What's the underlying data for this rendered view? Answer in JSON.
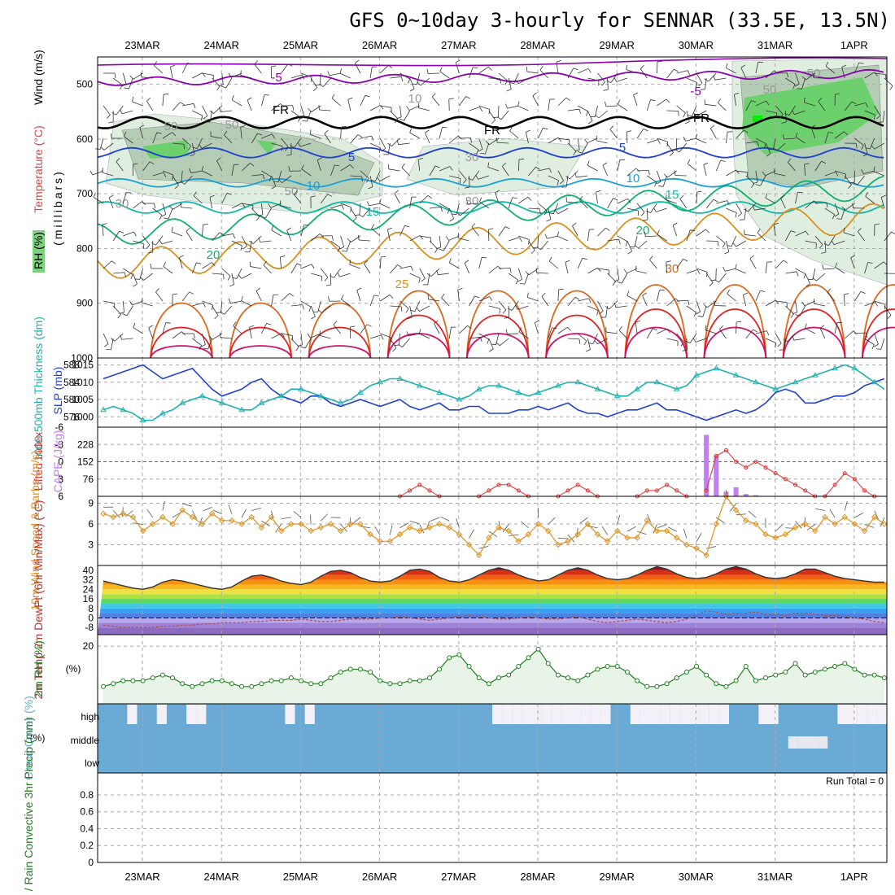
{
  "title": "GFS 0~10day 3-hourly for SENNAR (33.5E, 13.5N)",
  "dates": [
    "23MAR",
    "24MAR",
    "25MAR",
    "26MAR",
    "27MAR",
    "28MAR",
    "29MAR",
    "30MAR",
    "31MAR",
    "1APR"
  ],
  "run_total": "Run Total = 0",
  "colors": {
    "purple": "#8b00b0",
    "blue": "#1f3fd0",
    "cyan": "#19a0d8",
    "teal": "#10b8a8",
    "green": "#10b070",
    "orange": "#d89020",
    "dkorange": "#d86820",
    "red": "#e02020",
    "magenta": "#d0106a",
    "rh_fill": "#7fd07f",
    "cloud": "#6aaad4",
    "thick": "#20b0b0",
    "slp": "#2040d0",
    "cape": "#c080f0",
    "li": "#e03030",
    "wind": "#e09020",
    "rh2m": "#208020"
  },
  "chart_data": [
    {
      "type": "heatmap",
      "panel": "upper air",
      "ylabel_parts": [
        "RH (%)",
        "Temperature (°C)",
        "Wind (m/s)"
      ],
      "ylabel_unit": "(millibars)",
      "yticks": [
        "500",
        "600",
        "700",
        "800",
        "900",
        "1000"
      ],
      "ylim": [
        1000,
        450
      ],
      "contour_labels": [
        "-5",
        "-5",
        "FR",
        "FR",
        "FR",
        "5",
        "5",
        "10",
        "10",
        "15",
        "15",
        "20",
        "20",
        "25",
        "30",
        "10",
        "30",
        "50",
        "50",
        "50",
        "50",
        "50",
        "30",
        "30"
      ],
      "temperature_levels_mb": {
        "-5": 495,
        "FR": 570,
        "5": 625,
        "10": 680,
        "15": 725,
        "20": 775,
        "25": 830
      }
    },
    {
      "type": "line",
      "panel": "thickness-slp",
      "ylabel_thickness": "1000-500mb Thickness (dm)",
      "ylabel_slp": "SLP (mb)",
      "yticks_left": [
        "576",
        "580",
        "584",
        "588"
      ],
      "yticks_right": [
        "1000",
        "1005",
        "1010",
        "1015"
      ],
      "series": [
        {
          "name": "SLP (mb)",
          "values": [
            1011,
            1012,
            1013,
            1014,
            1015,
            1013,
            1011,
            1012,
            1013,
            1014,
            1011,
            1008,
            1006,
            1007,
            1008,
            1010,
            1011,
            1008,
            1006,
            1005,
            1004,
            1006,
            1006,
            1004,
            1003,
            1004,
            1005,
            1004,
            1003,
            1004,
            1005,
            1003,
            1002,
            1003,
            1004,
            1002,
            1002,
            1003,
            1003,
            1001,
            1001,
            1001,
            1002,
            1002,
            1003,
            1002,
            1003,
            1004,
            1002,
            1001,
            1001,
            1000,
            1001,
            1002,
            1002,
            1003,
            1004,
            1002,
            1002,
            1001,
            1000,
            999,
            1000,
            1001,
            1002,
            1001,
            1002,
            1004,
            1007,
            1008,
            1007,
            1004,
            1004,
            1005,
            1006,
            1006,
            1007,
            1009,
            1010,
            1011
          ]
        },
        {
          "name": "1000-500mb Thickness (dm)",
          "values": [
            1002,
            1003,
            1002,
            1001,
            999,
            999,
            1001,
            1002,
            1004,
            1005,
            1006,
            1005,
            1004,
            1003,
            1002,
            1002,
            1004,
            1005,
            1006,
            1008,
            1008,
            1007,
            1006,
            1005,
            1004,
            1005,
            1007,
            1009,
            1010,
            1011,
            1011,
            1010,
            1009,
            1008,
            1007,
            1006,
            1005,
            1006,
            1008,
            1009,
            1009,
            1008,
            1007,
            1006,
            1007,
            1008,
            1009,
            1010,
            1010,
            1009,
            1008,
            1007,
            1006,
            1006,
            1008,
            1010,
            1010,
            1009,
            1008,
            1009,
            1012,
            1013,
            1014,
            1013,
            1012,
            1011,
            1010,
            1009,
            1008,
            1009,
            1010,
            1011,
            1012,
            1013,
            1014,
            1015,
            1014,
            1012,
            1010,
            1008
          ]
        }
      ]
    },
    {
      "type": "bar",
      "panel": "lifted-cape",
      "ylabel_li": "Lifted Index",
      "ylabel_cape": "CAPE (J/kg)",
      "yticks_left": [
        "-6",
        "-3",
        "0",
        "3",
        "6"
      ],
      "yticks_right": [
        "76",
        "152",
        "228"
      ],
      "cape_values": [
        0,
        0,
        0,
        0,
        0,
        0,
        0,
        0,
        0,
        0,
        0,
        0,
        0,
        0,
        0,
        0,
        0,
        0,
        0,
        0,
        0,
        0,
        0,
        0,
        0,
        0,
        0,
        0,
        0,
        0,
        0,
        0,
        0,
        0,
        0,
        0,
        0,
        0,
        0,
        0,
        0,
        0,
        0,
        0,
        0,
        0,
        0,
        0,
        0,
        0,
        0,
        0,
        0,
        0,
        0,
        0,
        0,
        0,
        0,
        0,
        0,
        270,
        180,
        20,
        40,
        10,
        5,
        0,
        0,
        0,
        0,
        0,
        0,
        0,
        0,
        0,
        0,
        0,
        0,
        0
      ],
      "li_segments": [
        {
          "start_index": 30,
          "values": [
            6,
            5,
            4,
            5,
            6
          ]
        },
        {
          "start_index": 38,
          "values": [
            6,
            5,
            4,
            4,
            5,
            6
          ]
        },
        {
          "start_index": 46,
          "values": [
            6,
            5,
            4,
            5,
            6
          ]
        },
        {
          "start_index": 54,
          "values": [
            6,
            5,
            5,
            4,
            5,
            6
          ]
        },
        {
          "start_index": 61,
          "values": [
            5,
            -1,
            -2,
            0,
            1,
            0,
            1,
            2,
            3,
            4,
            5,
            6
          ]
        },
        {
          "start_index": 73,
          "values": [
            6,
            4,
            2,
            3,
            5,
            6
          ]
        }
      ]
    },
    {
      "type": "line",
      "panel": "10m wind",
      "ylabel": "10m Wind Speed & Barbs (m/s)",
      "yticks": [
        "3",
        "6",
        "9"
      ],
      "ylim": [
        0,
        10
      ],
      "values": [
        7.5,
        7,
        7.5,
        7,
        5,
        6,
        7,
        6,
        8,
        7,
        6,
        7.5,
        6.5,
        6.5,
        6,
        7,
        5.5,
        7,
        5,
        6,
        6,
        5,
        5.5,
        6,
        5,
        6,
        6,
        4.5,
        3.5,
        3.5,
        4.5,
        5.5,
        5,
        5.5,
        6,
        5.5,
        4.5,
        3,
        1.5,
        4,
        5.5,
        5,
        3.5,
        4.5,
        6,
        5,
        3,
        3.5,
        4.5,
        6,
        4.5,
        3.5,
        5,
        4,
        4,
        6.5,
        5,
        5,
        4,
        3,
        2.5,
        1.5,
        6,
        10,
        8,
        6.5,
        6,
        4.5,
        4,
        4.5,
        5.5,
        6,
        5,
        7,
        6,
        7,
        6,
        5,
        7,
        6
      ]
    },
    {
      "type": "area",
      "panel": "2m temp",
      "ylabel": "2m Temp 2m DewPt (6hr Min/Max) (°C)",
      "yticks": [
        "-8",
        "0",
        "8",
        "16",
        "24",
        "32",
        "40"
      ],
      "ylim": [
        -14,
        44
      ],
      "temp": [
        31,
        29,
        27,
        25,
        24,
        26,
        30,
        32,
        31,
        29,
        27,
        25,
        24,
        26,
        31,
        35,
        36,
        34,
        31,
        29,
        28,
        30,
        35,
        39,
        40,
        38,
        34,
        31,
        30,
        31,
        35,
        40,
        41,
        39,
        34,
        31,
        30,
        32,
        36,
        40,
        42,
        40,
        36,
        33,
        31,
        32,
        36,
        40,
        42,
        40,
        36,
        33,
        32,
        33,
        36,
        40,
        43,
        41,
        37,
        34,
        33,
        34,
        37,
        41,
        43,
        41,
        37,
        34,
        33,
        34,
        37,
        41,
        41,
        38,
        35,
        33,
        32,
        31,
        30,
        30
      ],
      "dewpoint": [
        -6,
        -7,
        -8,
        -8,
        -8,
        -8,
        -7,
        -7,
        -6,
        -6,
        -5,
        -5,
        -4,
        -4,
        -4,
        -3,
        -3,
        -2,
        -2,
        -2,
        -1,
        -2,
        -3,
        -3,
        -2,
        -1,
        -1,
        -1,
        0,
        0,
        1,
        0,
        -1,
        -2,
        -1,
        0,
        1,
        2,
        1,
        0,
        -1,
        -1,
        0,
        1,
        0,
        -1,
        -1,
        0,
        1,
        -1,
        -3,
        -4,
        -3,
        -2,
        -1,
        -2,
        -3,
        -4,
        -3,
        -1,
        2,
        6,
        5,
        3,
        4,
        4,
        5,
        3,
        3,
        2,
        4,
        4,
        3,
        2,
        2,
        1,
        0,
        -1,
        -3,
        -4
      ]
    },
    {
      "type": "line",
      "panel": "2m rh",
      "ylabel": "2m RH (%)",
      "yticks": [
        "20"
      ],
      "ylim": [
        0,
        24
      ],
      "values": [
        6,
        7,
        8,
        8,
        8,
        9,
        10,
        9,
        7,
        6,
        7,
        8,
        8,
        7,
        6,
        6,
        7,
        8,
        8,
        9,
        8,
        7,
        7,
        9,
        11,
        12,
        12,
        11,
        8,
        7,
        7,
        8,
        8,
        9,
        12,
        16,
        17,
        13,
        9,
        7,
        9,
        10,
        13,
        16,
        19,
        14,
        10,
        9,
        8,
        10,
        12,
        13,
        13,
        11,
        8,
        6,
        6,
        7,
        9,
        11,
        13,
        10,
        7,
        6,
        8,
        13,
        8,
        9,
        10,
        11,
        14,
        10,
        11,
        12,
        13,
        14,
        12,
        10,
        10,
        9
      ]
    },
    {
      "type": "heatmap",
      "panel": "cloud",
      "ylabel": "Cloud Cover (%)",
      "rows": [
        "high",
        "middle",
        "low"
      ],
      "high_clear": [
        0,
        0,
        0,
        1,
        0,
        0,
        1,
        0,
        0,
        1,
        1,
        0,
        0,
        0,
        0,
        0,
        0,
        0,
        0,
        1,
        0,
        1,
        0,
        0,
        0,
        0,
        0,
        0,
        0,
        0,
        0,
        0,
        0,
        0,
        0,
        0,
        0,
        0,
        0,
        0,
        1,
        1,
        1,
        1,
        1,
        1,
        1,
        1,
        1,
        1,
        1,
        1,
        0,
        0,
        1,
        1,
        1,
        1,
        1,
        1,
        1,
        1,
        1,
        1,
        0,
        0,
        0,
        1,
        1,
        0,
        0,
        0,
        0,
        0,
        0,
        1,
        1,
        1,
        1,
        1
      ],
      "middle_clear": [
        0,
        0,
        0,
        0,
        0,
        0,
        0,
        0,
        0,
        0,
        0,
        0,
        0,
        0,
        0,
        0,
        0,
        0,
        0,
        0,
        0,
        0,
        0,
        0,
        0,
        0,
        0,
        0,
        0,
        0,
        0,
        0,
        0,
        0,
        0,
        0,
        0,
        0,
        0,
        0,
        0,
        0,
        0,
        0,
        0,
        0,
        0,
        0,
        0,
        0,
        0,
        0,
        0,
        0,
        0,
        0,
        0,
        0,
        0,
        0,
        0,
        0,
        0,
        0,
        0,
        0,
        0,
        0,
        0,
        0,
        1,
        1,
        1,
        1,
        0,
        0,
        0,
        0,
        0,
        0
      ]
    },
    {
      "type": "bar",
      "panel": "precip",
      "ylabel": "Total / Rain Convective 3hr Precip (mm)",
      "yticks": [
        "0",
        "0.2",
        "0.4",
        "0.6",
        "0.8"
      ],
      "ylim": [
        0,
        1
      ],
      "values": []
    }
  ]
}
